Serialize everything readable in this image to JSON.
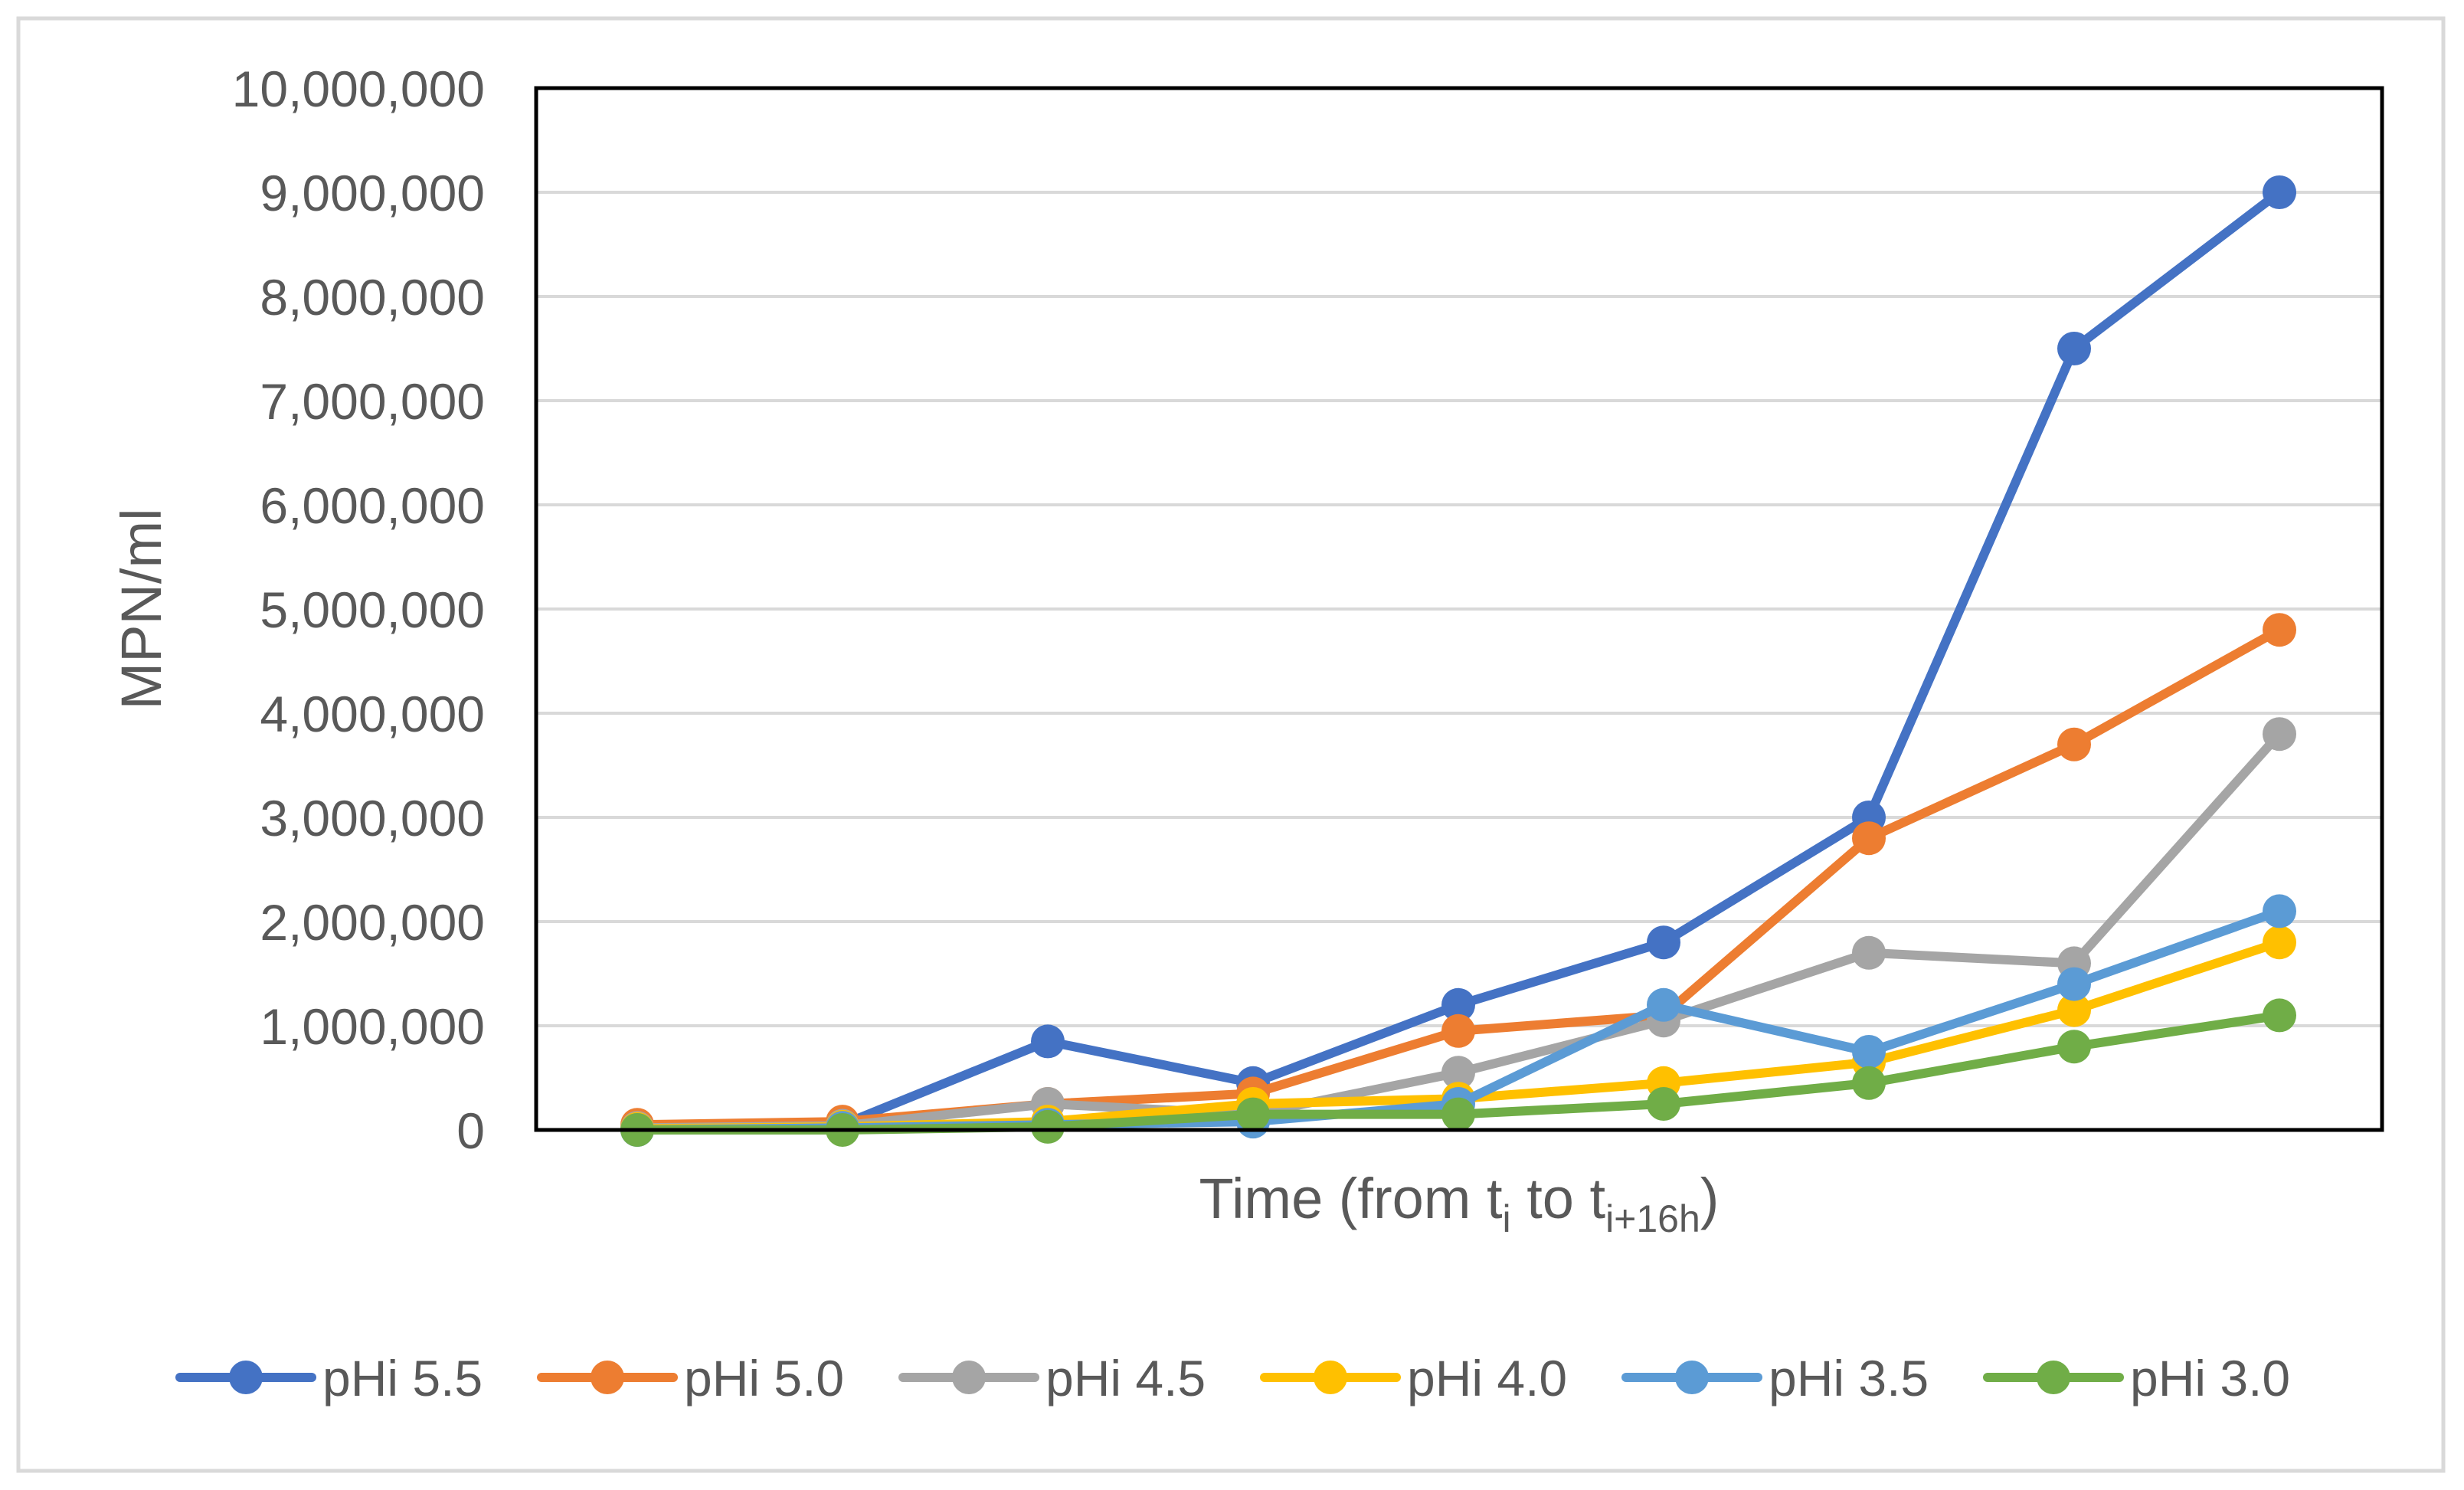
{
  "chart_data": {
    "type": "line",
    "title": "",
    "xlabel": "Time (from ti to ti+16h)",
    "xlabel_parts": {
      "prefix": "Time (from t",
      "sub1": "i",
      "middle": " to t",
      "sub2": "i+16h",
      "suffix": ")"
    },
    "ylabel": "MPN/ml",
    "ylim": [
      0,
      10000000
    ],
    "yticks": [
      0,
      1000000,
      2000000,
      3000000,
      4000000,
      5000000,
      6000000,
      7000000,
      8000000,
      9000000,
      10000000
    ],
    "ytick_labels": [
      "0",
      "1,000,000",
      "2,000,000",
      "3,000,000",
      "4,000,000",
      "5,000,000",
      "6,000,000",
      "7,000,000",
      "8,000,000",
      "9,000,000",
      "10,000,000"
    ],
    "x": [
      1,
      2,
      3,
      4,
      5,
      6,
      7,
      8,
      9
    ],
    "grid": true,
    "legend_position": "bottom",
    "series": [
      {
        "name": "pHi 5.5",
        "color": "#4472C4",
        "values": [
          0,
          50000,
          850000,
          450000,
          1200000,
          1800000,
          3000000,
          7500000,
          9000000
        ]
      },
      {
        "name": "pHi 5.0",
        "color": "#ED7D31",
        "values": [
          50000,
          80000,
          250000,
          350000,
          950000,
          1100000,
          2800000,
          3700000,
          4800000
        ]
      },
      {
        "name": "pHi 4.5",
        "color": "#A5A5A5",
        "values": [
          20000,
          40000,
          250000,
          150000,
          550000,
          1050000,
          1700000,
          1600000,
          3800000
        ]
      },
      {
        "name": "pHi 4.0",
        "color": "#FFC000",
        "values": [
          10000,
          30000,
          80000,
          250000,
          300000,
          450000,
          650000,
          1150000,
          1800000
        ]
      },
      {
        "name": "pHi 3.5",
        "color": "#5B9BD5",
        "values": [
          0,
          20000,
          50000,
          80000,
          250000,
          1200000,
          750000,
          1400000,
          2100000
        ]
      },
      {
        "name": "pHi 3.0",
        "color": "#70AD47",
        "values": [
          0,
          0,
          30000,
          150000,
          150000,
          250000,
          450000,
          800000,
          1100000
        ]
      }
    ]
  }
}
